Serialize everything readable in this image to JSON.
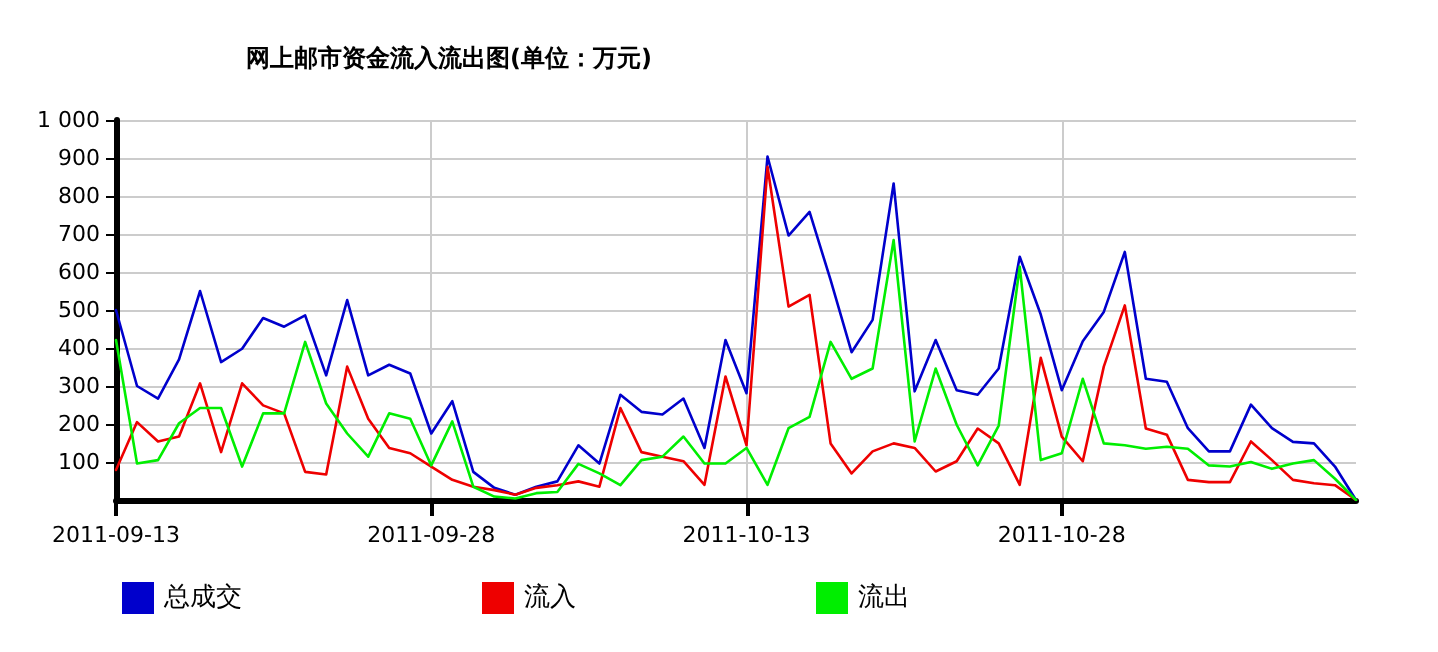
{
  "chart_data": {
    "type": "line",
    "title": "网上邮市资金流入流出图(单位：万元)",
    "x": [
      "2011-09-13",
      "2011-09-14",
      "2011-09-15",
      "2011-09-16",
      "2011-09-17",
      "2011-09-18",
      "2011-09-19",
      "2011-09-20",
      "2011-09-21",
      "2011-09-22",
      "2011-09-23",
      "2011-09-24",
      "2011-09-25",
      "2011-09-26",
      "2011-09-27",
      "2011-09-28",
      "2011-09-29",
      "2011-09-30",
      "2011-10-01",
      "2011-10-02",
      "2011-10-03",
      "2011-10-04",
      "2011-10-05",
      "2011-10-06",
      "2011-10-07",
      "2011-10-08",
      "2011-10-09",
      "2011-10-10",
      "2011-10-11",
      "2011-10-12",
      "2011-10-13",
      "2011-10-14",
      "2011-10-15",
      "2011-10-16",
      "2011-10-17",
      "2011-10-18",
      "2011-10-19",
      "2011-10-20",
      "2011-10-21",
      "2011-10-22",
      "2011-10-23",
      "2011-10-24",
      "2011-10-25",
      "2011-10-26",
      "2011-10-27",
      "2011-10-28",
      "2011-10-29",
      "2011-10-30",
      "2011-10-31",
      "2011-11-01",
      "2011-11-02",
      "2011-11-03",
      "2011-11-04",
      "2011-11-05",
      "2011-11-06",
      "2011-11-07",
      "2011-11-08",
      "2011-11-09",
      "2011-11-10",
      "2011-11-11"
    ],
    "series": [
      {
        "name": "总成交",
        "color": "#0000cc",
        "values": [
          500,
          300,
          267,
          370,
          550,
          363,
          398,
          479,
          456,
          486,
          328,
          526,
          328,
          356,
          333,
          175,
          260,
          74,
          32,
          14,
          35,
          49,
          144,
          96,
          277,
          232,
          225,
          267,
          137,
          421,
          281,
          904,
          696,
          758,
          579,
          389,
          474,
          833,
          286,
          421,
          289,
          277,
          346,
          640,
          488,
          289,
          418,
          495,
          653,
          319,
          311,
          189,
          128,
          128,
          251,
          189,
          153,
          149,
          88,
          0
        ]
      },
      {
        "name": "流入",
        "color": "#ee0000",
        "values": [
          79,
          205,
          154,
          167,
          307,
          126,
          307,
          249,
          228,
          74,
          67,
          351,
          214,
          137,
          123,
          88,
          53,
          35,
          26,
          14,
          32,
          39,
          49,
          35,
          242,
          126,
          114,
          102,
          40,
          325,
          144,
          877,
          509,
          540,
          149,
          70,
          128,
          149,
          137,
          75,
          102,
          188,
          149,
          40,
          374,
          167,
          102,
          351,
          512,
          188,
          172,
          53,
          47,
          47,
          154,
          105,
          53,
          44,
          39,
          0
        ]
      },
      {
        "name": "流出",
        "color": "#00ee00",
        "values": [
          421,
          96,
          105,
          202,
          242,
          242,
          88,
          228,
          228,
          416,
          254,
          175,
          114,
          228,
          214,
          91,
          207,
          35,
          9,
          4,
          18,
          21,
          95,
          70,
          39,
          105,
          114,
          167,
          96,
          96,
          137,
          40,
          189,
          219,
          416,
          319,
          346,
          684,
          154,
          346,
          198,
          91,
          196,
          614,
          105,
          123,
          319,
          149,
          144,
          135,
          140,
          135,
          91,
          88,
          100,
          82,
          96,
          105,
          56,
          0
        ]
      }
    ],
    "xlim": [
      "2011-09-13",
      "2011-11-11"
    ],
    "xticks": [
      "2011-09-13",
      "2011-09-28",
      "2011-10-13",
      "2011-10-28"
    ],
    "ylim": [
      0,
      1000
    ],
    "yticks": [
      100,
      200,
      300,
      400,
      500,
      600,
      700,
      800,
      900,
      {
        "value": 1000,
        "label": "1 000"
      }
    ],
    "grid": true,
    "legend": "bottom"
  }
}
